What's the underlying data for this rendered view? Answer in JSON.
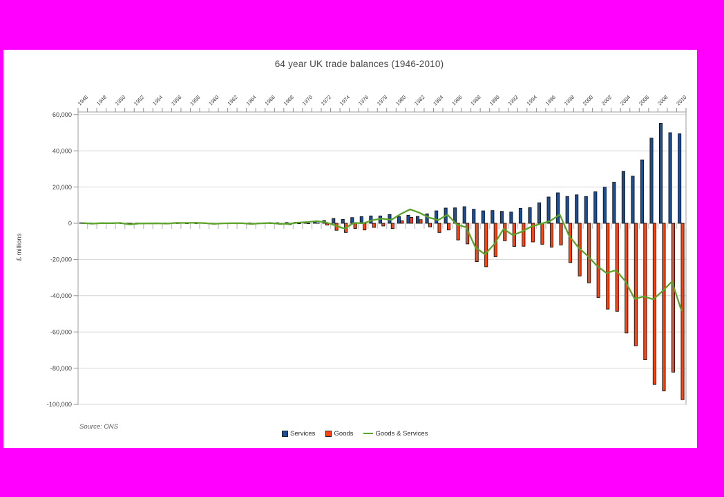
{
  "window": {
    "background_color": "#ff00ff",
    "panel_color": "#ffffff"
  },
  "chart_data": {
    "type": "bar+line",
    "title": "64 year UK trade balances (1946-2010)",
    "ylabel": "£ millions",
    "source_note": "Source: ONS",
    "grid": true,
    "legend_position": "bottom",
    "ylim": [
      -100000,
      60000
    ],
    "y_ticks": [
      {
        "label": "60,000",
        "value": 60000
      },
      {
        "label": "40,000",
        "value": 40000
      },
      {
        "label": "20,000",
        "value": 20000
      },
      {
        "label": "0",
        "value": 0
      },
      {
        "label": "-20,000",
        "value": -20000
      },
      {
        "label": "-40,000",
        "value": -40000
      },
      {
        "label": "-60,000",
        "value": -60000
      },
      {
        "label": "-80,000",
        "value": -80000
      },
      {
        "label": "-100,000",
        "value": -100000
      }
    ],
    "x_tick_labels": [
      "1946",
      "1948",
      "1950",
      "1952",
      "1954",
      "1956",
      "1958",
      "1960",
      "1962",
      "1964",
      "1966",
      "1968",
      "1970",
      "1972",
      "1974",
      "1976",
      "1978",
      "1980",
      "1982",
      "1984",
      "1986",
      "1988",
      "1990",
      "1992",
      "1994",
      "1996",
      "1998",
      "2000",
      "2002",
      "2004",
      "2006",
      "2008",
      "2010"
    ],
    "years": [
      1946,
      1947,
      1948,
      1949,
      1950,
      1951,
      1952,
      1953,
      1954,
      1955,
      1956,
      1957,
      1958,
      1959,
      1960,
      1961,
      1962,
      1963,
      1964,
      1965,
      1966,
      1967,
      1968,
      1969,
      1970,
      1971,
      1972,
      1973,
      1974,
      1975,
      1976,
      1977,
      1978,
      1979,
      1980,
      1981,
      1982,
      1983,
      1984,
      1985,
      1986,
      1987,
      1988,
      1989,
      1990,
      1991,
      1992,
      1993,
      1994,
      1995,
      1996,
      1997,
      1998,
      1999,
      2000,
      2001,
      2002,
      2003,
      2004,
      2005,
      2006,
      2007,
      2008,
      2009,
      2010
    ],
    "series": [
      {
        "name": "Services",
        "type": "bar",
        "color": "#1a4e96",
        "values": [
          230,
          150,
          220,
          200,
          250,
          50,
          150,
          170,
          180,
          130,
          200,
          230,
          250,
          220,
          70,
          90,
          120,
          140,
          150,
          180,
          230,
          300,
          400,
          600,
          700,
          1000,
          1500,
          2650,
          2150,
          3150,
          3700,
          4050,
          4050,
          4800,
          3700,
          4450,
          3800,
          5200,
          6850,
          8400,
          8500,
          9150,
          7750,
          6850,
          7000,
          6600,
          6200,
          8250,
          8600,
          11300,
          14500,
          16800,
          14800,
          15700,
          14800,
          17400,
          19900,
          22700,
          28700,
          26000,
          35000,
          47000,
          55200,
          50000,
          49400
        ]
      },
      {
        "name": "Goods",
        "type": "bar",
        "color": "#ff420e",
        "values": [
          -100,
          -360,
          -150,
          -140,
          -50,
          -690,
          -270,
          -240,
          -200,
          -310,
          50,
          -30,
          30,
          -120,
          -410,
          -150,
          -100,
          -80,
          -520,
          -240,
          -70,
          -600,
          -710,
          -210,
          -30,
          190,
          -1000,
          -3900,
          -5100,
          -2900,
          -3700,
          -2300,
          -1500,
          -2900,
          1400,
          3250,
          2000,
          -2000,
          -5100,
          -3700,
          -9200,
          -11400,
          -21200,
          -24000,
          -18500,
          -9700,
          -12800,
          -12700,
          -10300,
          -11600,
          -13200,
          -12000,
          -21700,
          -29100,
          -32900,
          -41000,
          -47400,
          -48600,
          -60600,
          -67700,
          -75400,
          -89000,
          -92600,
          -82200,
          -97400
        ]
      },
      {
        "name": "Goods & Services",
        "type": "line",
        "color": "#5ba329",
        "values": [
          130,
          -210,
          70,
          60,
          200,
          -640,
          -120,
          -70,
          -20,
          -180,
          250,
          200,
          280,
          100,
          -340,
          -60,
          20,
          60,
          -370,
          -60,
          160,
          -300,
          -310,
          390,
          670,
          1190,
          500,
          -1250,
          -2950,
          250,
          0,
          1750,
          2550,
          1900,
          5100,
          7700,
          5800,
          3200,
          1750,
          4700,
          -700,
          -2250,
          -13450,
          -17150,
          -11500,
          -3100,
          -6600,
          -4450,
          -1700,
          -300,
          1300,
          4800,
          -6900,
          -13400,
          -18100,
          -23600,
          -27500,
          -25900,
          -31900,
          -41700,
          -40400,
          -42000,
          -37400,
          -32200,
          -48000
        ]
      }
    ]
  }
}
